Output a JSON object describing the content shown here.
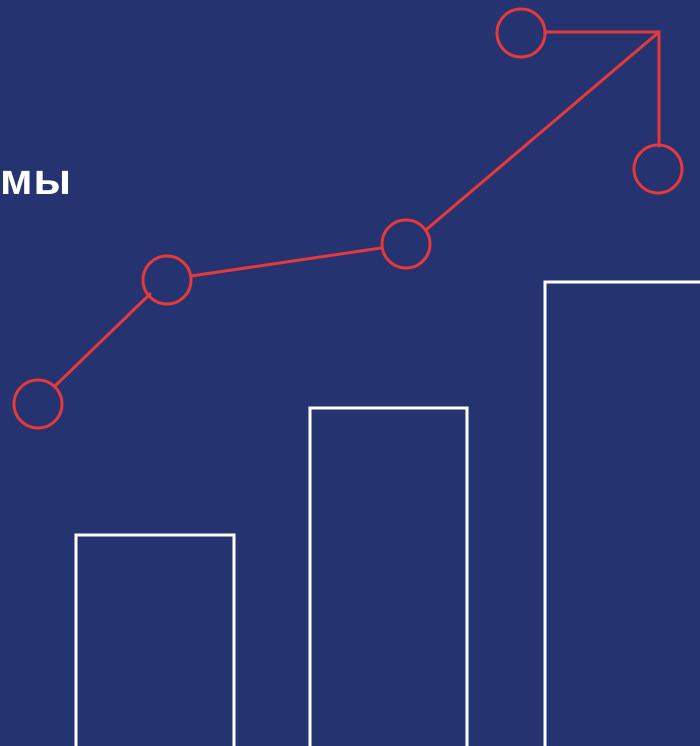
{
  "headline": {
    "text": "мы"
  },
  "colors": {
    "background": "#253470",
    "trend_line": "#E5393B",
    "bar_outline": "#FFFFFF",
    "text": "#FFFFFF"
  },
  "graphic": {
    "bars_icon": "outlined-bar-chart-icon",
    "trend_icon": "rising-trend-arrow-icon"
  }
}
